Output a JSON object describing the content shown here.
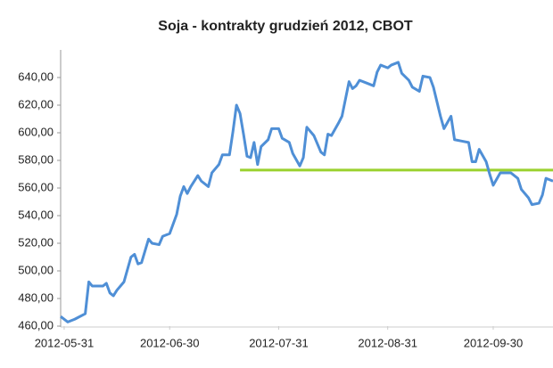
{
  "chart_data": {
    "type": "line",
    "title": "Soja - kontrakty grudzień 2012, CBOT",
    "x": [
      "2012-05-30",
      "2012-06-01",
      "2012-06-03",
      "2012-06-06",
      "2012-06-07",
      "2012-06-08",
      "2012-06-11",
      "2012-06-12",
      "2012-06-13",
      "2012-06-14",
      "2012-06-15",
      "2012-06-17",
      "2012-06-19",
      "2012-06-20",
      "2012-06-21",
      "2012-06-22",
      "2012-06-24",
      "2012-06-25",
      "2012-06-27",
      "2012-06-28",
      "2012-06-30",
      "2012-07-02",
      "2012-07-03",
      "2012-07-04",
      "2012-07-05",
      "2012-07-06",
      "2012-07-08",
      "2012-07-09",
      "2012-07-11",
      "2012-07-12",
      "2012-07-14",
      "2012-07-15",
      "2012-07-17",
      "2012-07-18",
      "2012-07-19",
      "2012-07-20",
      "2012-07-21",
      "2012-07-22",
      "2012-07-23",
      "2012-07-24",
      "2012-07-25",
      "2012-07-26",
      "2012-07-28",
      "2012-07-29",
      "2012-07-31",
      "2012-08-01",
      "2012-08-03",
      "2012-08-04",
      "2012-08-06",
      "2012-08-07",
      "2012-08-08",
      "2012-08-10",
      "2012-08-12",
      "2012-08-13",
      "2012-08-14",
      "2012-08-15",
      "2012-08-17",
      "2012-08-18",
      "2012-08-20",
      "2012-08-21",
      "2012-08-22",
      "2012-08-23",
      "2012-08-25",
      "2012-08-27",
      "2012-08-28",
      "2012-08-29",
      "2012-08-31",
      "2012-09-01",
      "2012-09-03",
      "2012-09-04",
      "2012-09-06",
      "2012-09-07",
      "2012-09-09",
      "2012-09-10",
      "2012-09-12",
      "2012-09-13",
      "2012-09-15",
      "2012-09-16",
      "2012-09-18",
      "2012-09-19",
      "2012-09-21",
      "2012-09-23",
      "2012-09-24",
      "2012-09-25",
      "2012-09-26",
      "2012-09-28",
      "2012-09-29",
      "2012-09-30",
      "2012-10-02",
      "2012-10-03",
      "2012-10-05",
      "2012-10-07",
      "2012-10-08",
      "2012-10-10",
      "2012-10-11",
      "2012-10-13",
      "2012-10-14",
      "2012-10-15",
      "2012-10-17"
    ],
    "series": [
      {
        "color": "#4f8fd6",
        "values": [
          467,
          463,
          465,
          469,
          492,
          489,
          489,
          491,
          484,
          482,
          486,
          492,
          510,
          512,
          505,
          506,
          523,
          520,
          519,
          525,
          527,
          541,
          554,
          561,
          556,
          561,
          569,
          565,
          561,
          571,
          577,
          584,
          584,
          601,
          620,
          614,
          599,
          583,
          582,
          593,
          577,
          590,
          595,
          603,
          603,
          596,
          593,
          585,
          576,
          582,
          604,
          598,
          586,
          584,
          599,
          598,
          607,
          612,
          637,
          632,
          634,
          638,
          636,
          634,
          644,
          649,
          647,
          649,
          651,
          643,
          638,
          633,
          630,
          641,
          640,
          633,
          612,
          603,
          612,
          595,
          594,
          593,
          579,
          579,
          588,
          579,
          570,
          562,
          571,
          571,
          571,
          567,
          559,
          553,
          548,
          549,
          555,
          567,
          565
        ]
      }
    ],
    "reference_line": {
      "value": 573,
      "x": [
        "2012-07-20",
        "2012-10-17"
      ],
      "color": "#9ad12e"
    },
    "xlim": [
      "2012-05-30",
      "2012-10-17"
    ],
    "xticks": [
      "2012-05-31",
      "2012-06-30",
      "2012-07-31",
      "2012-08-31",
      "2012-09-30"
    ],
    "ylim": [
      460,
      660
    ],
    "yticks": [
      {
        "value": 460,
        "label": "460,00"
      },
      {
        "value": 480,
        "label": "480,00"
      },
      {
        "value": 500,
        "label": "500,00"
      },
      {
        "value": 520,
        "label": "520,00"
      },
      {
        "value": 540,
        "label": "540,00"
      },
      {
        "value": 560,
        "label": "560,00"
      },
      {
        "value": 580,
        "label": "580,00"
      },
      {
        "value": 600,
        "label": "600,00"
      },
      {
        "value": 620,
        "label": "620,00"
      },
      {
        "value": 640,
        "label": "640,00"
      }
    ]
  }
}
